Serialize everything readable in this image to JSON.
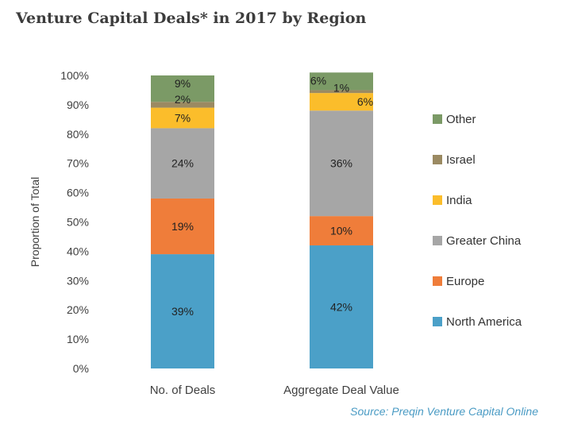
{
  "title": "Venture Capital Deals* in 2017 by Region",
  "source": "Source: Preqin Venture Capital Online",
  "chart_data": {
    "type": "bar",
    "stacked": true,
    "categories": [
      "No. of Deals",
      "Aggregate Deal Value"
    ],
    "ylabel": "Proportion of Total",
    "ylim": [
      0,
      100
    ],
    "yticks": [
      "0%",
      "10%",
      "20%",
      "30%",
      "40%",
      "50%",
      "60%",
      "70%",
      "80%",
      "90%",
      "100%"
    ],
    "legend_position": "right",
    "series": [
      {
        "name": "North America",
        "color": "#4ba0c8",
        "values": [
          39,
          42
        ],
        "labels": [
          "39%",
          "42%"
        ]
      },
      {
        "name": "Europe",
        "color": "#ef7d3a",
        "values": [
          19,
          10
        ],
        "labels": [
          "19%",
          "10%"
        ]
      },
      {
        "name": "Greater China",
        "color": "#a6a6a6",
        "values": [
          24,
          36
        ],
        "labels": [
          "24%",
          "36%"
        ]
      },
      {
        "name": "India",
        "color": "#fbbd2b",
        "values": [
          7,
          6
        ],
        "labels": [
          "7%",
          "6%"
        ]
      },
      {
        "name": "Israel",
        "color": "#9b8a62",
        "values": [
          2,
          1
        ],
        "labels": [
          "2%",
          "1%"
        ]
      },
      {
        "name": "Other",
        "color": "#7b9a66",
        "values": [
          9,
          6
        ],
        "labels": [
          "9%",
          "6%"
        ]
      }
    ]
  }
}
